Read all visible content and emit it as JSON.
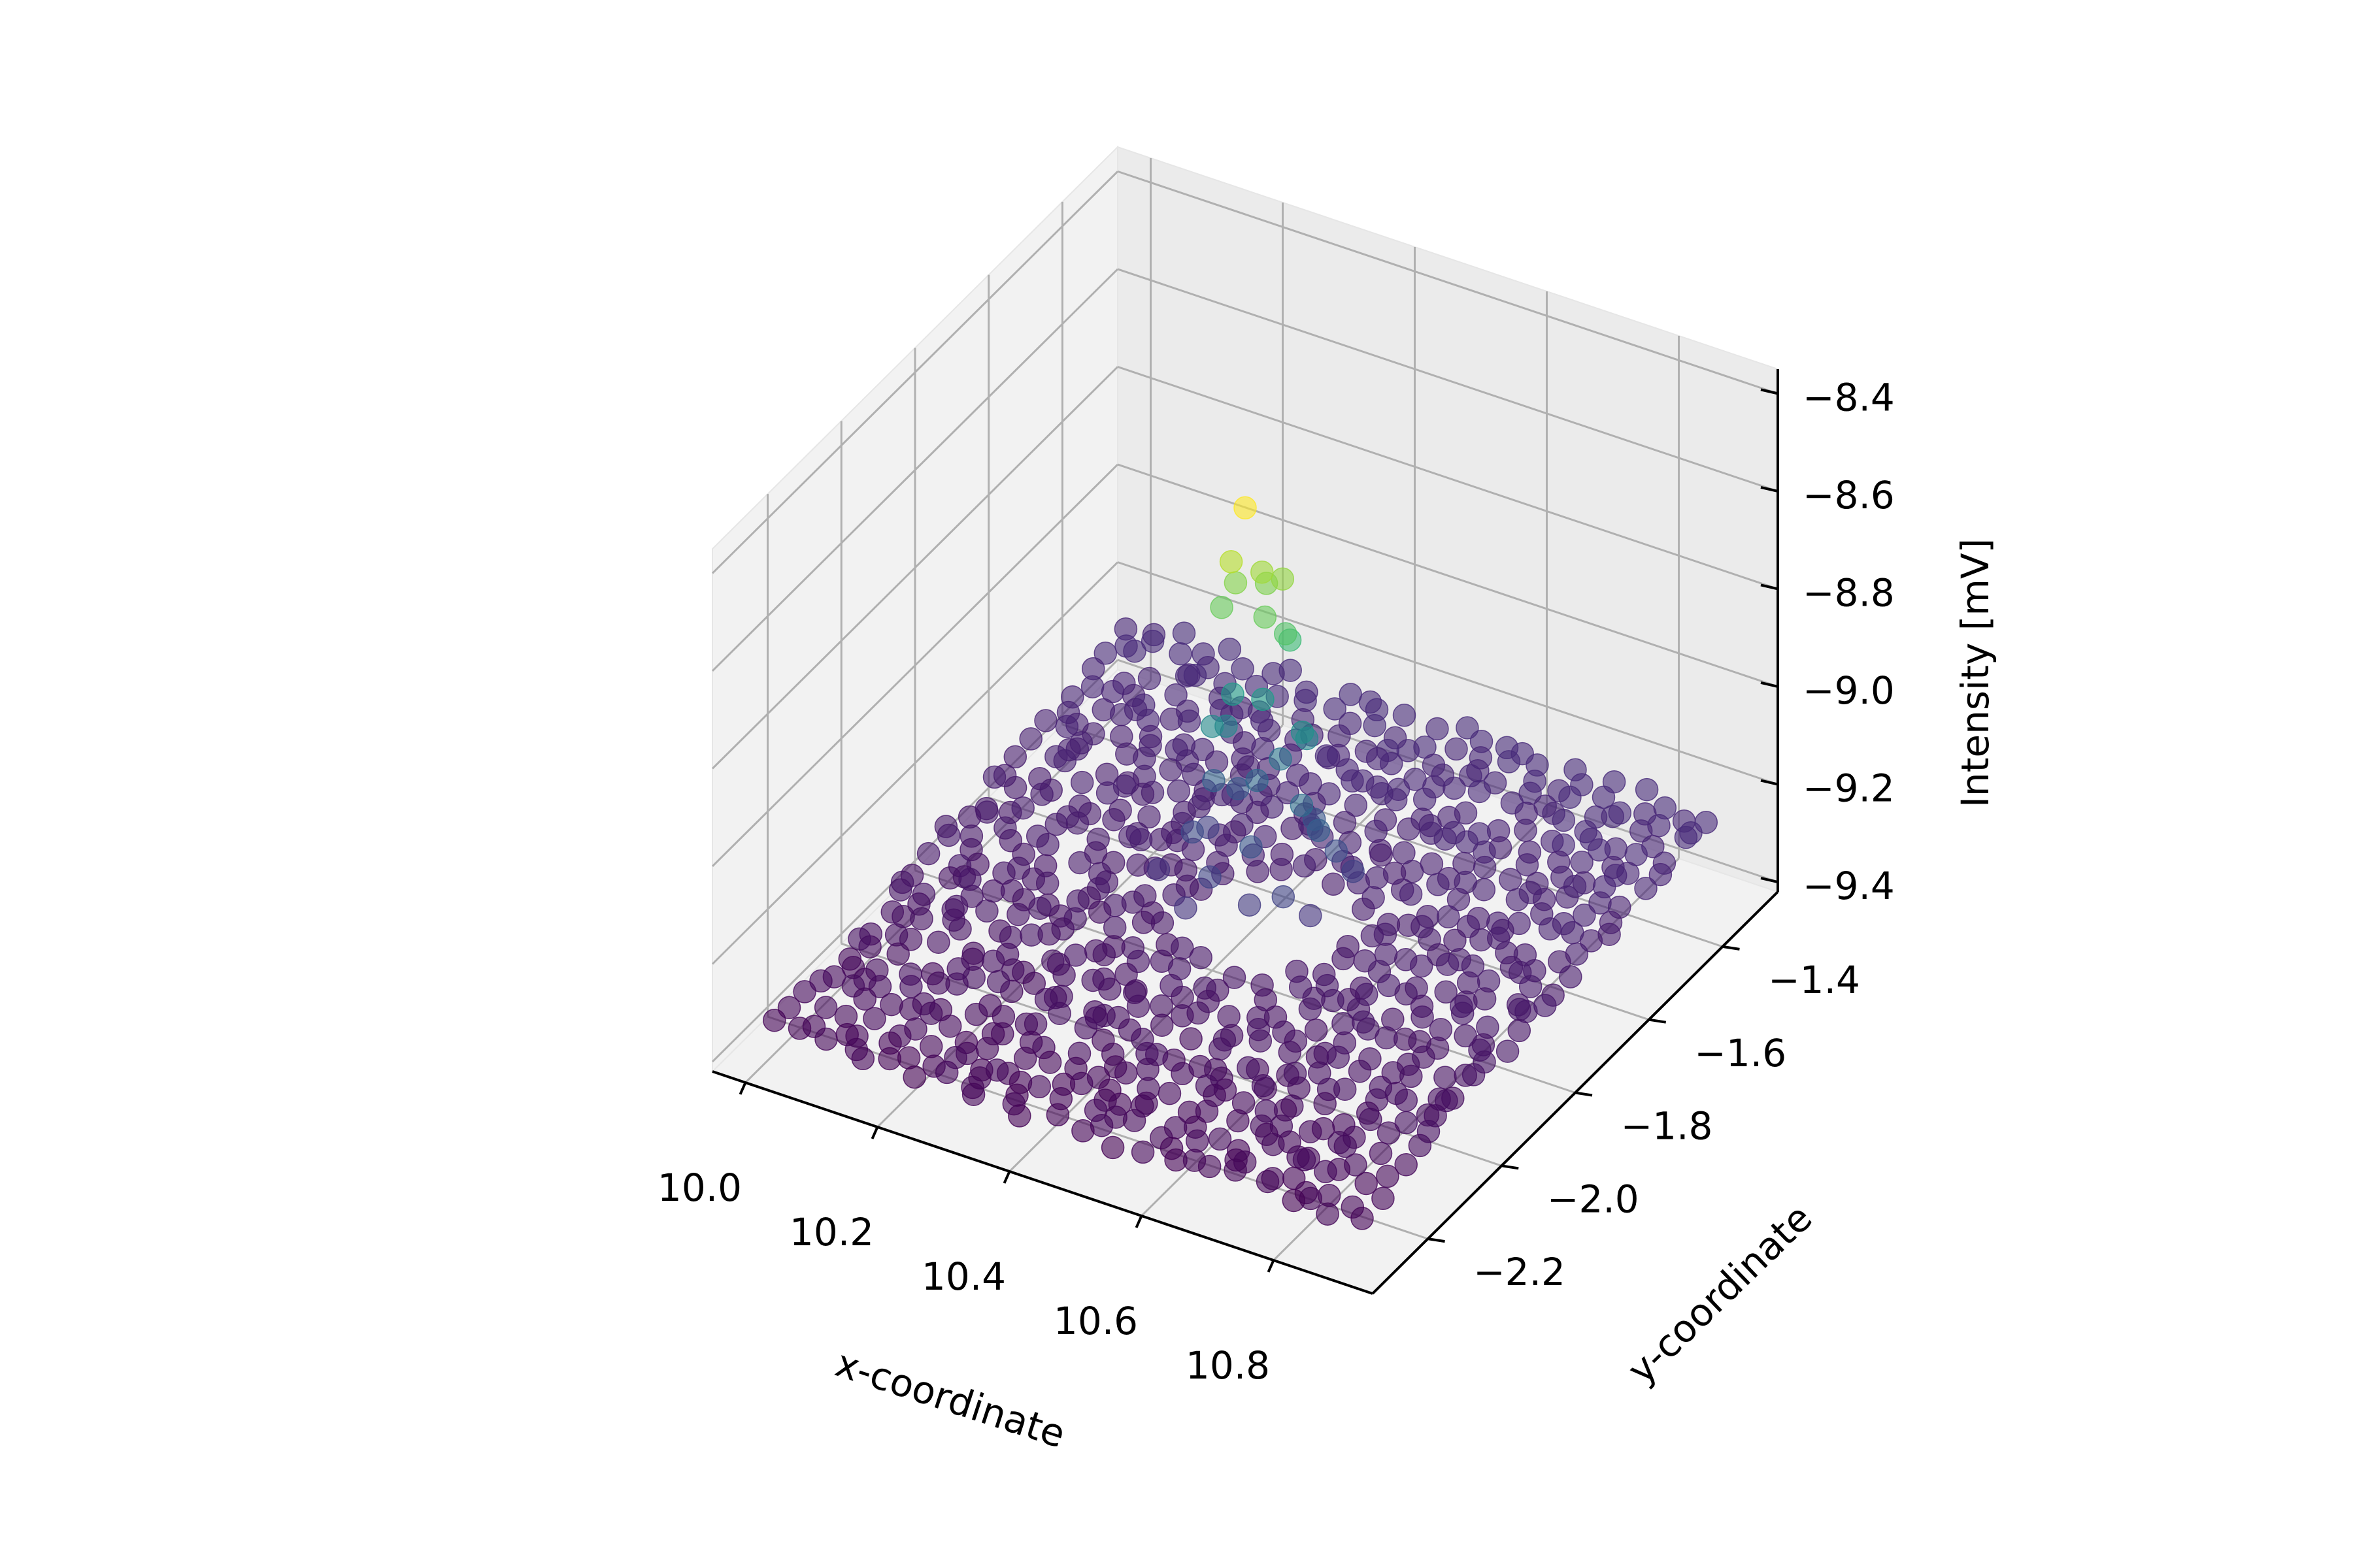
{
  "chart_data": {
    "type": "scatter",
    "projection": "3d",
    "title": "",
    "xlabel": "x-coordinate",
    "ylabel": "y-coordinate",
    "zlabel": "Intensity [mV]",
    "xlim": [
      9.95,
      10.95
    ],
    "ylim": [
      -2.35,
      -1.25
    ],
    "zlim": [
      -9.42,
      -8.35
    ],
    "xticks": [
      {
        "value": 10.0,
        "label": "10.0"
      },
      {
        "value": 10.2,
        "label": "10.2"
      },
      {
        "value": 10.4,
        "label": "10.4"
      },
      {
        "value": 10.6,
        "label": "10.6"
      },
      {
        "value": 10.8,
        "label": "10.8"
      }
    ],
    "yticks": [
      {
        "value": -2.2,
        "label": "−2.2"
      },
      {
        "value": -2.0,
        "label": "−2.0"
      },
      {
        "value": -1.8,
        "label": "−1.8"
      },
      {
        "value": -1.6,
        "label": "−1.6"
      },
      {
        "value": -1.4,
        "label": "−1.4"
      }
    ],
    "zticks": [
      {
        "value": -9.4,
        "label": "−9.4"
      },
      {
        "value": -9.2,
        "label": "−9.2"
      },
      {
        "value": -9.0,
        "label": "−9.0"
      },
      {
        "value": -8.8,
        "label": "−8.8"
      },
      {
        "value": -8.6,
        "label": "−8.6"
      },
      {
        "value": -8.4,
        "label": "−8.4"
      }
    ],
    "grid": true,
    "colormap": "viridis",
    "color_by": "z",
    "marker_alpha": 0.6,
    "description_of_data": "grid of points on a near-flat plane around -9.3 mV with a sharp peak near (10.45, -1.8) rising to about -8.45 mV",
    "baseline": {
      "x_range": [
        10.0,
        10.9
      ],
      "y_range": [
        -2.3,
        -1.3
      ],
      "z_near": -9.35,
      "z_far": -9.25
    },
    "peak_points": [
      {
        "x": 10.45,
        "y": -1.8,
        "z": -8.45
      },
      {
        "x": 10.44,
        "y": -1.82,
        "z": -8.55
      },
      {
        "x": 10.47,
        "y": -1.79,
        "z": -8.58
      },
      {
        "x": 10.49,
        "y": -1.77,
        "z": -8.6
      },
      {
        "x": 10.43,
        "y": -1.79,
        "z": -8.62
      },
      {
        "x": 10.46,
        "y": -1.76,
        "z": -8.63
      },
      {
        "x": 10.48,
        "y": -1.8,
        "z": -8.66
      },
      {
        "x": 10.42,
        "y": -1.81,
        "z": -8.66
      },
      {
        "x": 10.5,
        "y": -1.78,
        "z": -8.7
      },
      {
        "x": 10.49,
        "y": -1.75,
        "z": -8.74
      },
      {
        "x": 10.42,
        "y": -1.78,
        "z": -8.86
      },
      {
        "x": 10.46,
        "y": -1.77,
        "z": -8.86
      },
      {
        "x": 10.4,
        "y": -1.8,
        "z": -8.92
      },
      {
        "x": 10.41,
        "y": -1.78,
        "z": -8.93
      },
      {
        "x": 10.52,
        "y": -1.77,
        "z": -8.9
      },
      {
        "x": 10.51,
        "y": -1.74,
        "z": -8.94
      },
      {
        "x": 10.47,
        "y": -1.74,
        "z": -9.0
      },
      {
        "x": 10.53,
        "y": -1.79,
        "z": -9.03
      },
      {
        "x": 10.44,
        "y": -1.75,
        "z": -9.05
      },
      {
        "x": 10.38,
        "y": -1.76,
        "z": -9.07
      },
      {
        "x": 10.55,
        "y": -1.78,
        "z": -9.08
      },
      {
        "x": 10.4,
        "y": -1.73,
        "z": -9.1
      },
      {
        "x": 10.51,
        "y": -1.72,
        "z": -9.12
      },
      {
        "x": 10.47,
        "y": -1.82,
        "z": -9.12
      },
      {
        "x": 10.56,
        "y": -1.75,
        "z": -9.14
      },
      {
        "x": 10.37,
        "y": -1.8,
        "z": -9.15
      },
      {
        "x": 10.43,
        "y": -1.86,
        "z": -9.17
      },
      {
        "x": 10.53,
        "y": -1.84,
        "z": -9.18
      },
      {
        "x": 10.58,
        "y": -1.74,
        "z": -9.18
      },
      {
        "x": 10.36,
        "y": -1.74,
        "z": -9.19
      },
      {
        "x": 10.49,
        "y": -1.86,
        "z": -9.2
      },
      {
        "x": 10.41,
        "y": -1.89,
        "z": -9.22
      },
      {
        "x": 10.56,
        "y": -1.82,
        "z": -9.22
      },
      {
        "x": 10.33,
        "y": -1.82,
        "z": -9.23
      }
    ]
  }
}
